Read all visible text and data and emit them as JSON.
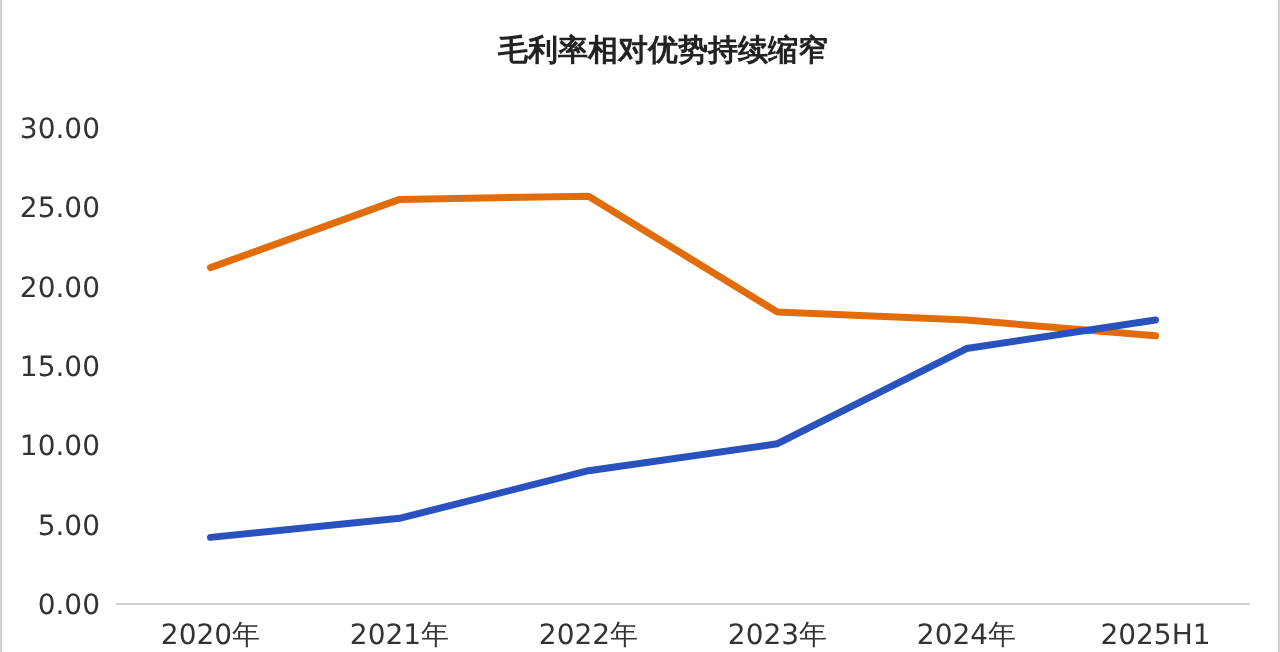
{
  "chart_data": {
    "type": "line",
    "title": "毛利率相对优势持续缩窄",
    "categories": [
      "2020年",
      "2021年",
      "2022年",
      "2023年",
      "2024年",
      "2025H1"
    ],
    "series": [
      {
        "color": "#e36c0a",
        "values": [
          21.2,
          25.5,
          25.7,
          18.4,
          17.9,
          16.9
        ]
      },
      {
        "color": "#2a52be",
        "values": [
          4.2,
          5.4,
          8.4,
          10.1,
          16.1,
          17.9
        ]
      }
    ],
    "ylim": [
      0,
      30
    ],
    "yticks": [
      {
        "value": 0,
        "label": "0.00"
      },
      {
        "value": 5,
        "label": "5.00"
      },
      {
        "value": 10,
        "label": "10.00"
      },
      {
        "value": 15,
        "label": "15.00"
      },
      {
        "value": 20,
        "label": "20.00"
      },
      {
        "value": 25,
        "label": "25.00"
      },
      {
        "value": 30,
        "label": "30.00"
      }
    ],
    "grid": false,
    "marker": "none",
    "line_style": "solid"
  }
}
